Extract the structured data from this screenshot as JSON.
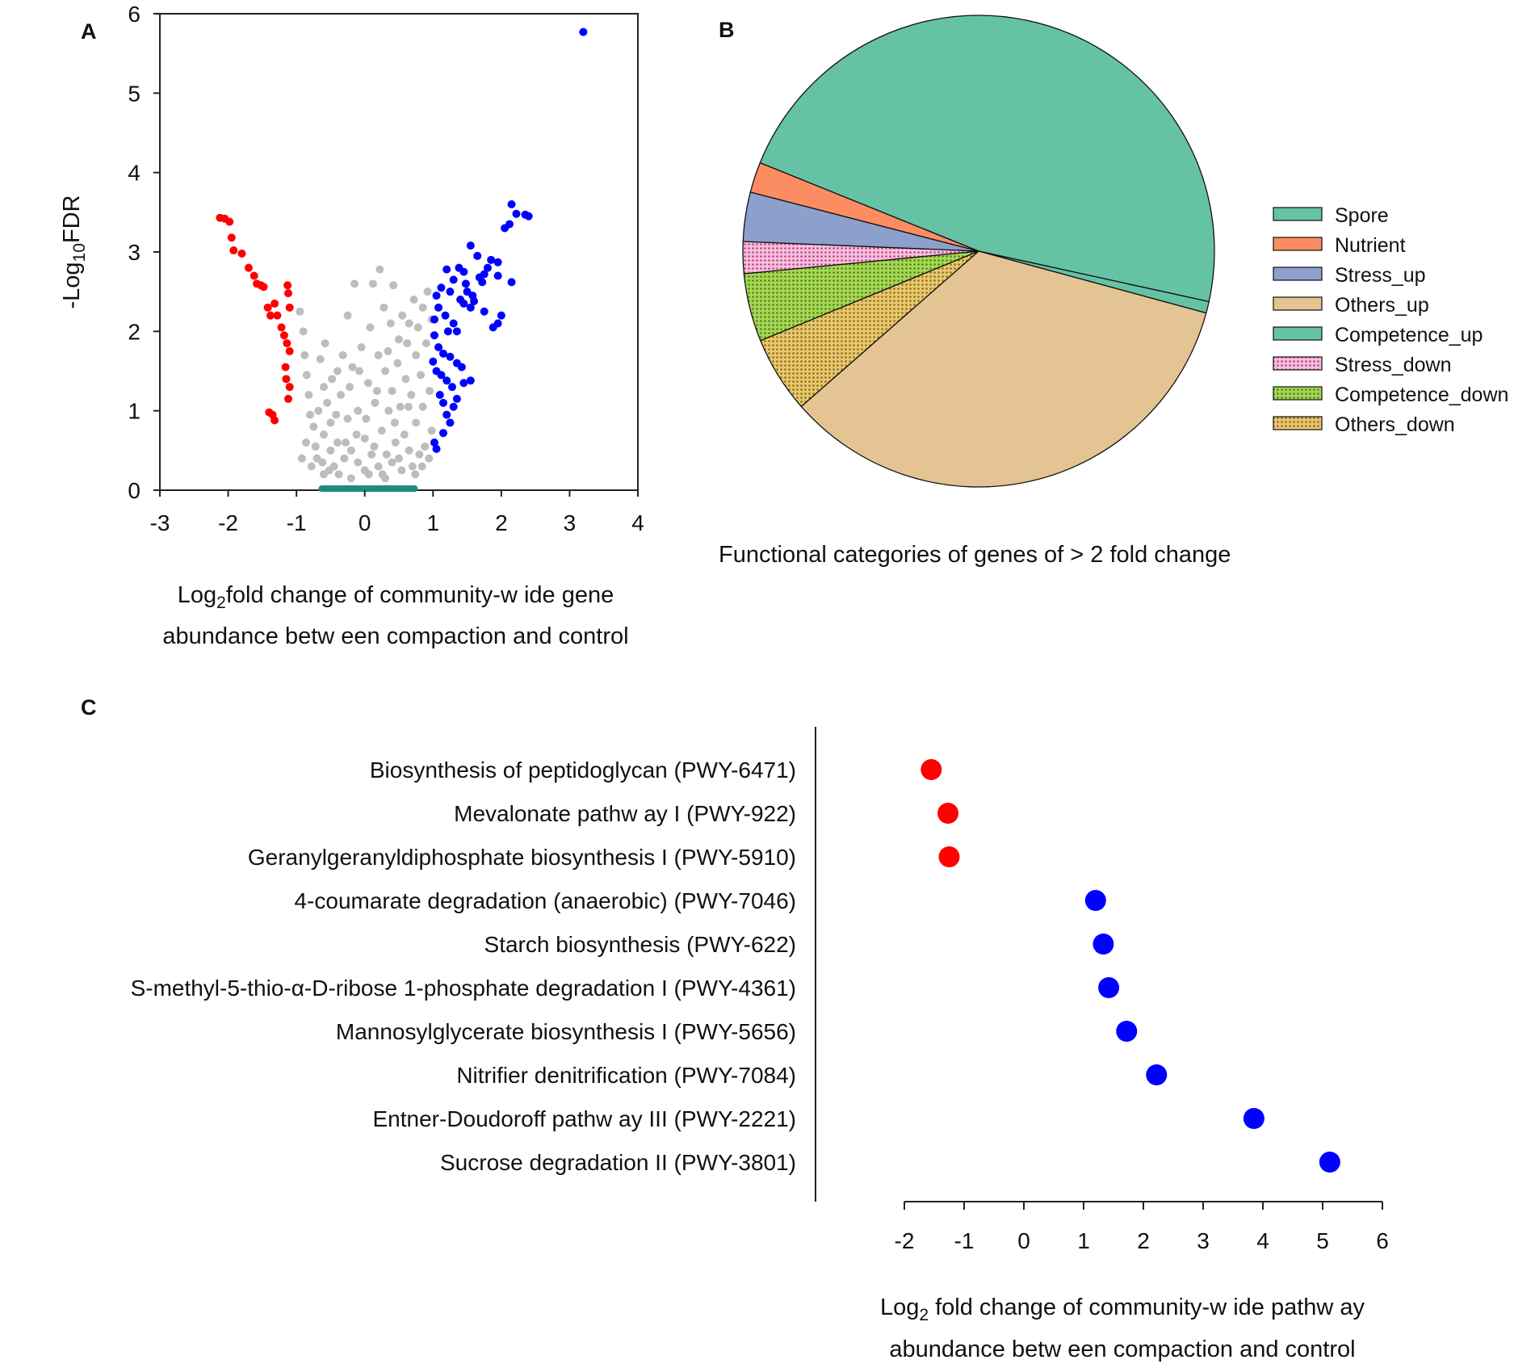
{
  "panels": {
    "a": "A",
    "b": "B",
    "c": "C"
  },
  "chart_data": [
    {
      "id": "A",
      "type": "scatter",
      "title": "",
      "xlabel_parts": {
        "pre": "Log",
        "sub": "2",
        "post": "fold change of community-w ide gene"
      },
      "xlabel_line2": "abundance betw een compaction and control",
      "ylabel_parts": {
        "pre": "-Log",
        "sub": "10",
        "post": "FDR"
      },
      "xlim": [
        -3,
        4
      ],
      "ylim": [
        0,
        6
      ],
      "xticks": [
        "-3",
        "-2",
        "-1",
        "0",
        "1",
        "2",
        "3",
        "4"
      ],
      "yticks": [
        "0",
        "1",
        "2",
        "3",
        "4",
        "5",
        "6"
      ],
      "series": [
        {
          "name": "not significant",
          "color": "#bdbdbd",
          "points": [
            [
              -0.95,
              2.25
            ],
            [
              -0.9,
              2.0
            ],
            [
              -0.88,
              1.7
            ],
            [
              -0.85,
              1.45
            ],
            [
              -0.82,
              1.2
            ],
            [
              -0.8,
              0.95
            ],
            [
              -0.75,
              0.8
            ],
            [
              -0.72,
              0.55
            ],
            [
              -0.7,
              0.4
            ],
            [
              -0.65,
              1.65
            ],
            [
              -0.6,
              1.3
            ],
            [
              -0.6,
              0.7
            ],
            [
              -0.55,
              1.1
            ],
            [
              -0.5,
              0.85
            ],
            [
              -0.5,
              0.5
            ],
            [
              -0.45,
              0.3
            ],
            [
              -0.4,
              1.5
            ],
            [
              -0.4,
              0.6
            ],
            [
              -0.35,
              1.2
            ],
            [
              -0.3,
              0.4
            ],
            [
              -0.25,
              0.9
            ],
            [
              -0.25,
              2.2
            ],
            [
              -0.2,
              0.5
            ],
            [
              -0.18,
              1.55
            ],
            [
              -0.15,
              2.6
            ],
            [
              -0.1,
              0.35
            ],
            [
              -0.1,
              1.0
            ],
            [
              -0.05,
              1.8
            ],
            [
              0.0,
              0.25
            ],
            [
              0.0,
              0.65
            ],
            [
              0.05,
              1.35
            ],
            [
              0.08,
              2.05
            ],
            [
              0.1,
              0.45
            ],
            [
              0.12,
              2.6
            ],
            [
              0.15,
              1.1
            ],
            [
              0.2,
              0.3
            ],
            [
              0.2,
              1.7
            ],
            [
              0.22,
              2.78
            ],
            [
              0.25,
              0.75
            ],
            [
              0.28,
              2.3
            ],
            [
              0.3,
              1.5
            ],
            [
              0.32,
              0.45
            ],
            [
              0.35,
              1.0
            ],
            [
              0.38,
              2.1
            ],
            [
              0.4,
              0.35
            ],
            [
              0.4,
              1.25
            ],
            [
              0.42,
              2.58
            ],
            [
              0.45,
              0.6
            ],
            [
              0.48,
              1.6
            ],
            [
              0.5,
              0.4
            ],
            [
              0.5,
              1.9
            ],
            [
              0.52,
              1.05
            ],
            [
              0.55,
              2.2
            ],
            [
              0.58,
              0.7
            ],
            [
              0.6,
              1.4
            ],
            [
              0.62,
              1.85
            ],
            [
              0.65,
              0.5
            ],
            [
              0.65,
              2.1
            ],
            [
              0.68,
              1.2
            ],
            [
              0.7,
              0.3
            ],
            [
              0.72,
              2.4
            ],
            [
              0.75,
              0.85
            ],
            [
              0.75,
              1.7
            ],
            [
              0.78,
              2.05
            ],
            [
              0.8,
              0.45
            ],
            [
              0.82,
              1.45
            ],
            [
              0.85,
              2.3
            ],
            [
              0.85,
              1.05
            ],
            [
              0.88,
              0.55
            ],
            [
              0.9,
              1.85
            ],
            [
              0.92,
              2.5
            ],
            [
              0.95,
              1.25
            ],
            [
              0.98,
              0.75
            ],
            [
              0.98,
              2.15
            ],
            [
              -0.68,
              1.0
            ],
            [
              -0.62,
              0.35
            ],
            [
              -0.58,
              1.85
            ],
            [
              -0.52,
              0.25
            ],
            [
              -0.48,
              1.4
            ],
            [
              -0.42,
              0.95
            ],
            [
              -0.38,
              0.2
            ],
            [
              -0.32,
              1.7
            ],
            [
              -0.28,
              0.6
            ],
            [
              -0.22,
              1.3
            ],
            [
              -0.12,
              0.7
            ],
            [
              -0.08,
              1.5
            ],
            [
              0.02,
              0.9
            ],
            [
              0.06,
              0.2
            ],
            [
              0.14,
              0.55
            ],
            [
              0.18,
              1.25
            ],
            [
              0.26,
              0.2
            ],
            [
              0.34,
              1.75
            ],
            [
              0.44,
              0.85
            ],
            [
              0.54,
              0.25
            ],
            [
              0.64,
              1.05
            ],
            [
              0.74,
              0.2
            ],
            [
              0.84,
              0.3
            ],
            [
              0.94,
              0.4
            ],
            [
              -0.78,
              0.3
            ],
            [
              -0.86,
              0.6
            ],
            [
              -0.92,
              0.4
            ],
            [
              -0.6,
              0.2
            ],
            [
              0.3,
              0.15
            ],
            [
              -0.2,
              0.15
            ]
          ]
        },
        {
          "name": "decreased",
          "color": "#ff0000",
          "points": [
            [
              -2.12,
              3.43
            ],
            [
              -2.05,
              3.42
            ],
            [
              -1.98,
              3.38
            ],
            [
              -1.95,
              3.18
            ],
            [
              -1.92,
              3.02
            ],
            [
              -1.8,
              2.98
            ],
            [
              -1.7,
              2.8
            ],
            [
              -1.62,
              2.7
            ],
            [
              -1.58,
              2.6
            ],
            [
              -1.52,
              2.58
            ],
            [
              -1.48,
              2.56
            ],
            [
              -1.42,
              2.3
            ],
            [
              -1.38,
              2.2
            ],
            [
              -1.32,
              2.35
            ],
            [
              -1.28,
              2.2
            ],
            [
              -1.22,
              2.05
            ],
            [
              -1.18,
              1.95
            ],
            [
              -1.13,
              2.58
            ],
            [
              -1.12,
              2.48
            ],
            [
              -1.1,
              2.3
            ],
            [
              -1.14,
              1.85
            ],
            [
              -1.1,
              1.75
            ],
            [
              -1.16,
              1.55
            ],
            [
              -1.15,
              1.4
            ],
            [
              -1.1,
              1.3
            ],
            [
              -1.12,
              1.15
            ],
            [
              -1.4,
              0.98
            ],
            [
              -1.35,
              0.95
            ],
            [
              -1.32,
              0.88
            ]
          ]
        },
        {
          "name": "increased",
          "color": "#0000ff",
          "points": [
            [
              3.2,
              5.77
            ],
            [
              2.15,
              3.6
            ],
            [
              2.22,
              3.48
            ],
            [
              2.35,
              3.47
            ],
            [
              2.4,
              3.45
            ],
            [
              2.12,
              3.35
            ],
            [
              2.05,
              3.3
            ],
            [
              1.55,
              3.08
            ],
            [
              1.65,
              2.95
            ],
            [
              1.85,
              2.9
            ],
            [
              1.95,
              2.87
            ],
            [
              1.8,
              2.8
            ],
            [
              1.75,
              2.72
            ],
            [
              1.95,
              2.7
            ],
            [
              1.68,
              2.68
            ],
            [
              1.72,
              2.62
            ],
            [
              2.15,
              2.62
            ],
            [
              1.38,
              2.8
            ],
            [
              1.45,
              2.75
            ],
            [
              1.2,
              2.78
            ],
            [
              1.3,
              2.65
            ],
            [
              1.48,
              2.6
            ],
            [
              1.5,
              2.5
            ],
            [
              1.58,
              2.45
            ],
            [
              1.6,
              2.38
            ],
            [
              1.45,
              2.35
            ],
            [
              1.55,
              2.3
            ],
            [
              1.4,
              2.4
            ],
            [
              1.25,
              2.5
            ],
            [
              1.12,
              2.55
            ],
            [
              1.05,
              2.45
            ],
            [
              1.08,
              2.3
            ],
            [
              1.02,
              2.15
            ],
            [
              1.18,
              2.2
            ],
            [
              1.3,
              2.1
            ],
            [
              1.22,
              2.0
            ],
            [
              1.35,
              2.0
            ],
            [
              1.75,
              2.25
            ],
            [
              1.95,
              2.1
            ],
            [
              1.88,
              2.05
            ],
            [
              2.0,
              2.2
            ],
            [
              1.02,
              1.95
            ],
            [
              1.08,
              1.8
            ],
            [
              1.15,
              1.72
            ],
            [
              1.25,
              1.68
            ],
            [
              1.35,
              1.6
            ],
            [
              1.42,
              1.55
            ],
            [
              1.0,
              1.62
            ],
            [
              1.05,
              1.5
            ],
            [
              1.12,
              1.45
            ],
            [
              1.2,
              1.38
            ],
            [
              1.28,
              1.3
            ],
            [
              1.45,
              1.35
            ],
            [
              1.55,
              1.38
            ],
            [
              1.1,
              1.2
            ],
            [
              1.15,
              1.1
            ],
            [
              1.3,
              1.05
            ],
            [
              1.35,
              1.15
            ],
            [
              1.2,
              0.95
            ],
            [
              1.25,
              0.85
            ],
            [
              1.15,
              0.72
            ],
            [
              1.02,
              0.6
            ],
            [
              1.05,
              0.52
            ]
          ]
        }
      ],
      "baseline": {
        "color": "#1e8c80",
        "x_from": -0.63,
        "x_to": 0.73,
        "y": 0.02
      }
    },
    {
      "id": "B",
      "type": "pie",
      "title": "Functional categories of genes of > 2 fold change",
      "slices": [
        {
          "label": "Spore",
          "value": 47.7,
          "color": "#66c2a5",
          "pattern": "solid"
        },
        {
          "label": "Competence_up",
          "value": 0.8,
          "color": "#66c2a5",
          "pattern": "solid"
        },
        {
          "label": "Others_up",
          "value": 34.6,
          "color": "#e5c494",
          "pattern": "solid"
        },
        {
          "label": "Others_down",
          "value": 5.3,
          "color": "#e5c494",
          "pattern": "dots-olive"
        },
        {
          "label": "Competence_down",
          "value": 4.7,
          "color": "#a6d854",
          "pattern": "dots-green"
        },
        {
          "label": "Stress_down",
          "value": 2.2,
          "color": "#e78ac3",
          "pattern": "dots-pink"
        },
        {
          "label": "Stress_up",
          "value": 3.4,
          "color": "#8da0cb",
          "pattern": "solid"
        },
        {
          "label": "Nutrient",
          "value": 2.1,
          "color": "#fc8d62",
          "pattern": "solid"
        }
      ],
      "legend": [
        {
          "label": "Spore",
          "color": "#66c2a5",
          "pattern": "solid"
        },
        {
          "label": "Nutrient",
          "color": "#fc8d62",
          "pattern": "solid"
        },
        {
          "label": "Stress_up",
          "color": "#8da0cb",
          "pattern": "solid"
        },
        {
          "label": "Others_up",
          "color": "#e5c494",
          "pattern": "solid"
        },
        {
          "label": "Competence_up",
          "color": "#66c2a5",
          "pattern": "solid"
        },
        {
          "label": "Stress_down",
          "color": "#e78ac3",
          "pattern": "dots-pink"
        },
        {
          "label": "Competence_down",
          "color": "#a6d854",
          "pattern": "dots-green"
        },
        {
          "label": "Others_down",
          "color": "#e5c494",
          "pattern": "dots-olive"
        }
      ]
    },
    {
      "id": "C",
      "type": "scatter",
      "title": "",
      "xlabel_parts": {
        "pre": "Log",
        "sub": "2",
        "post": " fold change of community-w ide pathw ay"
      },
      "xlabel_line2": "abundance betw een compaction and control",
      "xlim": [
        -2,
        6
      ],
      "xticks": [
        "-2",
        "-1",
        "0",
        "1",
        "2",
        "3",
        "4",
        "5",
        "6"
      ],
      "categories": [
        "Biosynthesis of peptidoglycan (PWY-6471)",
        "Mevalonate pathw ay I (PWY-922)",
        "Geranylgeranyldiphosphate biosynthesis I (PWY-5910)",
        "4-coumarate degradation (anaerobic) (PWY-7046)",
        "Starch biosynthesis (PWY-622)",
        "S-methyl-5-thio-α-D-ribose 1-phosphate degradation I (PWY-4361)",
        "Mannosylglycerate biosynthesis I (PWY-5656)",
        "Nitrifier denitrification (PWY-7084)",
        "Entner-Doudoroff pathw ay III (PWY-2221)",
        "Sucrose degradation II (PWY-3801)"
      ],
      "values": [
        -1.55,
        -1.27,
        -1.25,
        1.2,
        1.33,
        1.42,
        1.72,
        2.22,
        3.85,
        5.12
      ],
      "colors": [
        "#ff0000",
        "#ff0000",
        "#ff0000",
        "#0000ff",
        "#0000ff",
        "#0000ff",
        "#0000ff",
        "#0000ff",
        "#0000ff",
        "#0000ff"
      ]
    }
  ]
}
